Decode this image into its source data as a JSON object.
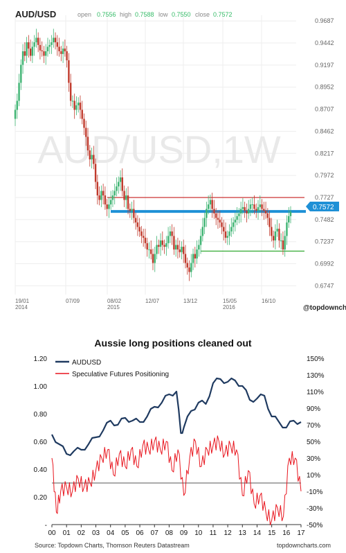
{
  "top": {
    "symbol": "AUD/USD",
    "watermark": "AUD/USD,1W",
    "ohlc": {
      "open_label": "open",
      "open": "0.7556",
      "high_label": "high",
      "high": "0.7588",
      "low_label": "low",
      "low": "0.7550",
      "close_label": "close",
      "close": "0.7572"
    },
    "price_tag": "0.7572",
    "brand": "@topdownchartss",
    "colors": {
      "up": "#3cb371",
      "down": "#c0392b",
      "blue_line": "#1e90d6",
      "red_level": "#cc3333",
      "green_level": "#33aa33",
      "accent_text": "#33bb66"
    }
  },
  "bottom": {
    "title": "Aussie long positions cleaned out",
    "source": "Source: Topdown Charts, Thomson Reuters Datastream",
    "brand": "topdowncharts.com",
    "colors": {
      "audusd": "#1f3a60",
      "positioning": "#e8141d",
      "zero": "#555555"
    }
  },
  "chart_data": [
    {
      "type": "candlestick",
      "title": "AUD/USD",
      "ylim": [
        0.665,
        0.975
      ],
      "y_ticks": [
        "0.9687",
        "0.9442",
        "0.9197",
        "0.8952",
        "0.8707",
        "0.8462",
        "0.8217",
        "0.7972",
        "0.7727",
        "0.7482",
        "0.7237",
        "0.6992",
        "0.6747"
      ],
      "x_ticks": [
        [
          "19/01",
          "2014"
        ],
        [
          "07/09",
          ""
        ],
        [
          "08/02",
          "2015"
        ],
        [
          "12/07",
          ""
        ],
        [
          "13/12",
          ""
        ],
        [
          "15/05",
          "2016"
        ],
        [
          "16/10",
          ""
        ]
      ],
      "close_series": [
        0.87,
        0.88,
        0.9,
        0.92,
        0.935,
        0.93,
        0.945,
        0.938,
        0.93,
        0.94,
        0.945,
        0.95,
        0.942,
        0.936,
        0.935,
        0.93,
        0.935,
        0.94,
        0.942,
        0.945,
        0.95,
        0.945,
        0.94,
        0.935,
        0.932,
        0.938,
        0.935,
        0.925,
        0.9,
        0.88,
        0.88,
        0.87,
        0.875,
        0.878,
        0.87,
        0.86,
        0.85,
        0.84,
        0.825,
        0.815,
        0.82,
        0.81,
        0.79,
        0.775,
        0.77,
        0.78,
        0.775,
        0.765,
        0.76,
        0.765,
        0.77,
        0.775,
        0.78,
        0.785,
        0.79,
        0.795,
        0.78,
        0.77,
        0.775,
        0.76,
        0.758,
        0.76,
        0.75,
        0.745,
        0.74,
        0.735,
        0.73,
        0.728,
        0.722,
        0.715,
        0.715,
        0.71,
        0.7,
        0.71,
        0.72,
        0.718,
        0.725,
        0.72,
        0.718,
        0.722,
        0.73,
        0.735,
        0.73,
        0.715,
        0.72,
        0.715,
        0.712,
        0.718,
        0.71,
        0.7,
        0.695,
        0.69,
        0.7,
        0.71,
        0.705,
        0.715,
        0.72,
        0.73,
        0.74,
        0.75,
        0.76,
        0.765,
        0.77,
        0.76,
        0.755,
        0.75,
        0.748,
        0.745,
        0.74,
        0.735,
        0.728,
        0.73,
        0.735,
        0.74,
        0.745,
        0.748,
        0.752,
        0.755,
        0.76,
        0.762,
        0.758,
        0.755,
        0.76,
        0.765,
        0.765,
        0.76,
        0.758,
        0.762,
        0.765,
        0.76,
        0.758,
        0.755,
        0.75,
        0.74,
        0.73,
        0.725,
        0.735,
        0.738,
        0.725,
        0.725,
        0.715,
        0.73,
        0.745,
        0.752,
        0.757
      ],
      "levels": {
        "resistance": 0.7727,
        "current": 0.7572,
        "support": 0.7132
      }
    },
    {
      "type": "line",
      "title": "Aussie long positions cleaned out",
      "x_ticks": [
        "00",
        "01",
        "02",
        "03",
        "04",
        "05",
        "06",
        "07",
        "08",
        "09",
        "10",
        "11",
        "12",
        "13",
        "14",
        "15",
        "16",
        "17"
      ],
      "y_left_ticks": [
        "1.20",
        "1.00",
        "0.80",
        "0.60",
        "0.40",
        "0.20",
        "-"
      ],
      "y_right_ticks": [
        "150%",
        "130%",
        "110%",
        "90%",
        "70%",
        "50%",
        "30%",
        "10%",
        "-10%",
        "-30%",
        "-50%"
      ],
      "ylim_left": [
        0,
        1.2
      ],
      "ylim_right": [
        -50,
        150
      ],
      "series": [
        {
          "name": "AUDUSD",
          "axis": "left",
          "x": [
            2000,
            2000.5,
            2001,
            2001.5,
            2002,
            2002.5,
            2003,
            2003.5,
            2004,
            2004.5,
            2005,
            2005.5,
            2006,
            2006.5,
            2007,
            2007.5,
            2008,
            2008.5,
            2008.8,
            2009,
            2009.5,
            2010,
            2010.5,
            2011,
            2011.5,
            2012,
            2012.5,
            2013,
            2013.5,
            2014,
            2014.5,
            2015,
            2015.5,
            2016,
            2016.5,
            2017
          ],
          "values": [
            0.65,
            0.58,
            0.51,
            0.53,
            0.54,
            0.58,
            0.63,
            0.68,
            0.75,
            0.72,
            0.77,
            0.75,
            0.74,
            0.78,
            0.85,
            0.88,
            0.94,
            0.96,
            0.66,
            0.7,
            0.82,
            0.88,
            0.87,
            1.02,
            1.05,
            1.03,
            1.04,
            1.0,
            0.9,
            0.91,
            0.93,
            0.78,
            0.74,
            0.7,
            0.75,
            0.74
          ]
        },
        {
          "name": "Speculative Futures Positioning",
          "axis": "right",
          "x": [
            2000,
            2000.3,
            2000.6,
            2001,
            2001.4,
            2001.8,
            2002.2,
            2002.6,
            2003,
            2003.4,
            2003.8,
            2004.2,
            2004.6,
            2005,
            2005.4,
            2005.8,
            2006.2,
            2006.6,
            2007,
            2007.4,
            2007.8,
            2008.2,
            2008.6,
            2009,
            2009.4,
            2009.8,
            2010.2,
            2010.6,
            2011,
            2011.4,
            2011.8,
            2012.2,
            2012.6,
            2013,
            2013.4,
            2013.8,
            2014.2,
            2014.6,
            2015,
            2015.4,
            2015.8,
            2016.2,
            2016.6,
            2017
          ],
          "values": [
            30,
            -35,
            -10,
            -5,
            -10,
            5,
            -5,
            0,
            15,
            30,
            40,
            10,
            35,
            20,
            40,
            20,
            45,
            40,
            50,
            40,
            50,
            15,
            40,
            -15,
            30,
            50,
            20,
            40,
            45,
            50,
            35,
            45,
            40,
            -15,
            15,
            -25,
            -15,
            -35,
            -45,
            -30,
            -40,
            30,
            30,
            -10
          ]
        }
      ]
    }
  ]
}
